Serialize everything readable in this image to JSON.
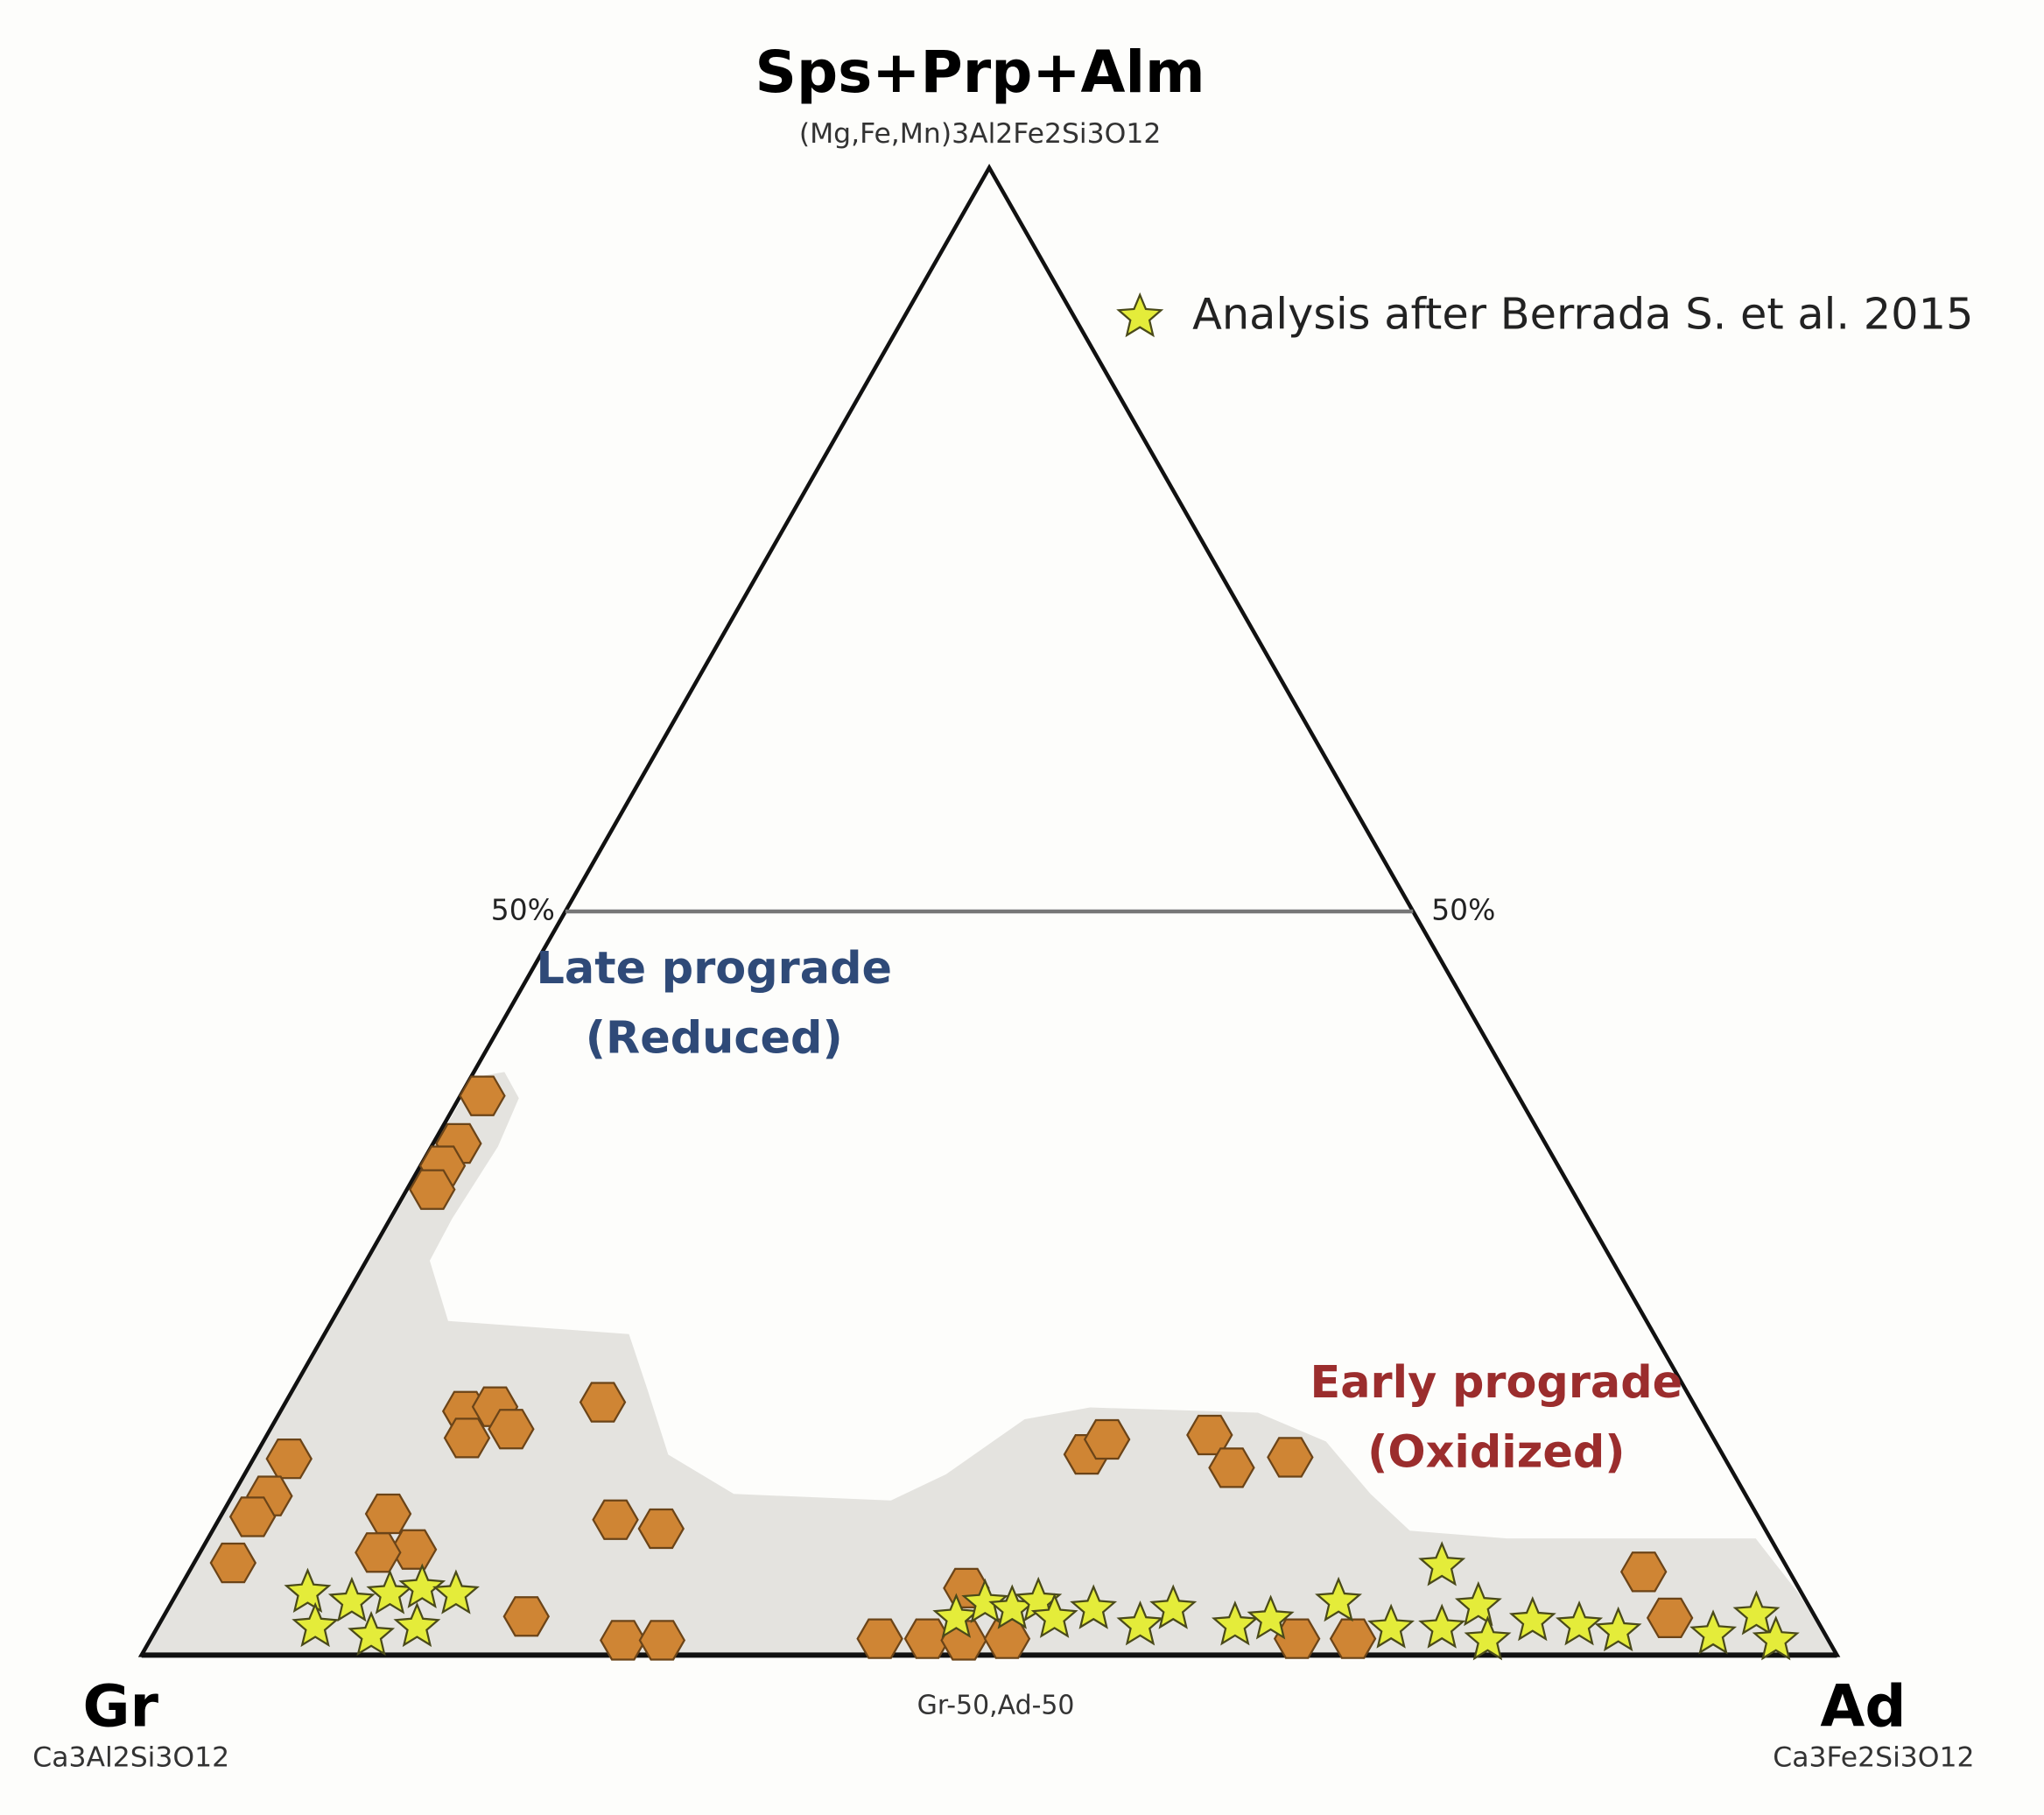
{
  "chart_data": {
    "type": "ternary",
    "vertices": [
      {
        "label": "Sps+Prp+Alm",
        "formula": "(Mg,Fe,Mn)3Al2Fe2Si3O12"
      },
      {
        "label": "Gr",
        "formula": "Ca3Al2Si3O12"
      },
      {
        "label": "Ad",
        "formula": "Ca3Fe2Si3O12"
      }
    ],
    "base_label": "Gr-50,Ad-50",
    "top_ticks": [
      {
        "value": 50,
        "label": "50%"
      }
    ],
    "annotations": [
      {
        "lines": [
          "Late prograde",
          "(Reduced)"
        ],
        "color": "#2f4a78"
      },
      {
        "lines": [
          "Early prograde",
          "(Oxidized)"
        ],
        "color": "#9b2d2d"
      }
    ],
    "series": [
      {
        "marker": "hexagon",
        "color": "#cf8534",
        "sps_prp_alm": [
          37.6,
          34.4,
          32.9,
          31.3,
          16.4,
          16.7,
          15.2,
          14.6,
          17.0,
          13.2,
          10.7,
          9.3,
          6.2,
          9.5,
          7.1,
          6.9,
          9.1,
          8.5,
          2.6,
          1.0,
          1.0,
          13.5,
          14.5,
          14.8,
          12.6,
          13.3,
          4.5,
          1.1,
          1.1,
          1.0,
          1.1,
          1.1,
          1.1,
          5.6,
          2.5
        ],
        "ad": [
          1.3,
          1.5,
          1.3,
          1.5,
          10.9,
          12.5,
          14.2,
          11.9,
          18.7,
          2.1,
          2.2,
          1.9,
          2.3,
          9.8,
          12.5,
          10.5,
          23.4,
          26.4,
          21.4,
          27.9,
          30.2,
          49.0,
          49.7,
          55.6,
          58.0,
          61.1,
          46.4,
          43.0,
          45.8,
          48.0,
          50.5,
          67.6,
          70.9,
          85.8,
          88.9
        ]
      },
      {
        "name": "Analysis after Berrada S. et al. 2015",
        "marker": "star",
        "color": "#e4ec3a",
        "sps_prp_alm": [
          4.2,
          3.6,
          4.1,
          4.5,
          4.1,
          1.9,
          1.3,
          1.9,
          2.5,
          3.5,
          3.1,
          3.6,
          2.5,
          3.1,
          2.0,
          3.1,
          2.0,
          2.4,
          3.6,
          1.8,
          6.0,
          1.8,
          3.3,
          1.0,
          2.3,
          2.0,
          1.6,
          1.4,
          2.7,
          1.0
        ],
        "ad": [
          7.7,
          10.6,
          12.6,
          14.3,
          16.5,
          9.3,
          12.9,
          15.3,
          46.8,
          48.0,
          49.8,
          51.1,
          52.6,
          54.6,
          57.9,
          59.3,
          63.5,
          65.4,
          68.8,
          72.8,
          73.7,
          75.8,
          77.2,
          78.9,
          80.9,
          83.8,
          86.3,
          92.0,
          93.9,
          95.9
        ]
      }
    ]
  }
}
